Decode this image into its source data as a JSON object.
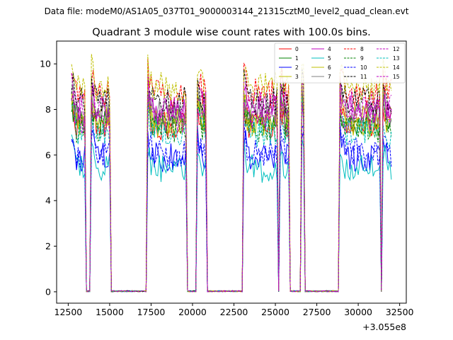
{
  "chart_data": {
    "type": "line",
    "suptitle": "Data file: modeM0/AS1A05_037T01_9000003144_21315cztM0_level2_quad_clean.evt",
    "title": "Quadrant 3 module wise count rates with 100.0s bins.",
    "xlabel": "",
    "ylabel": "",
    "xlim": [
      11800,
      32900
    ],
    "ylim": [
      -0.5,
      11.0
    ],
    "x_ticks": [
      12500,
      15000,
      17500,
      20000,
      22500,
      25000,
      27500,
      30000,
      32500
    ],
    "y_ticks": [
      0,
      2,
      4,
      6,
      8,
      10
    ],
    "x_offset_label": "+3.055e8",
    "active_windows": [
      [
        12700,
        13500
      ],
      [
        13900,
        15000
      ],
      [
        17300,
        19600
      ],
      [
        20300,
        20800
      ],
      [
        23100,
        25150
      ],
      [
        25300,
        25800
      ],
      [
        26600,
        26700
      ],
      [
        28900,
        31350
      ],
      [
        31450,
        32000
      ]
    ],
    "window_start_extra": 0.45,
    "legend_location": "upper right",
    "series": [
      {
        "name": "0",
        "color": "#ff0000",
        "dash": "solid",
        "level": 7.3
      },
      {
        "name": "1",
        "color": "#008000",
        "dash": "solid",
        "level": 7.5
      },
      {
        "name": "2",
        "color": "#0000ff",
        "dash": "solid",
        "level": 5.9
      },
      {
        "name": "3",
        "color": "#bfbf00",
        "dash": "solid",
        "level": 7.6
      },
      {
        "name": "4",
        "color": "#bf00bf",
        "dash": "solid",
        "level": 8.0
      },
      {
        "name": "5",
        "color": "#00bfbf",
        "dash": "solid",
        "level": 5.4
      },
      {
        "name": "6",
        "color": "#bfbf00",
        "dash": "solid",
        "level": 7.4
      },
      {
        "name": "7",
        "color": "#808080",
        "dash": "solid",
        "level": 7.8
      },
      {
        "name": "8",
        "color": "#ff0000",
        "dash": "dashed",
        "level": 8.7
      },
      {
        "name": "9",
        "color": "#008000",
        "dash": "dashed",
        "level": 7.2
      },
      {
        "name": "10",
        "color": "#0000ff",
        "dash": "dashed",
        "level": 6.1
      },
      {
        "name": "11",
        "color": "#000000",
        "dash": "dashed",
        "level": 8.4
      },
      {
        "name": "12",
        "color": "#bf00bf",
        "dash": "dashed",
        "level": 8.2
      },
      {
        "name": "13",
        "color": "#00bfbf",
        "dash": "dashed",
        "level": 7.0
      },
      {
        "name": "14",
        "color": "#bfbf00",
        "dash": "dashed",
        "level": 9.0
      },
      {
        "name": "15",
        "color": "#bf00bf",
        "dash": "dashed",
        "level": 7.6
      }
    ]
  }
}
